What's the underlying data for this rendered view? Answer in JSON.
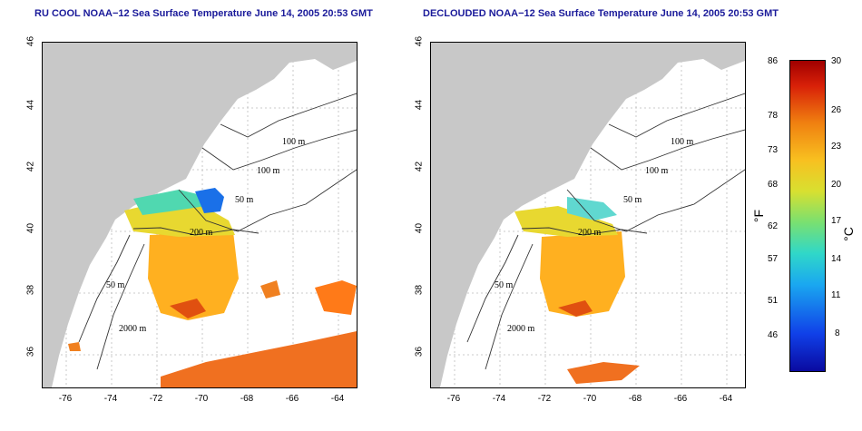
{
  "left_map": {
    "title": "RU COOL NOAA−12 Sea Surface Temperature June 14, 2005 20:53 GMT",
    "contour_labels": [
      "100 m",
      "100 m",
      "50 m",
      "200 m",
      "50 m",
      "2000 m"
    ]
  },
  "right_map": {
    "title": "DECLOUDED NOAA−12 Sea Surface Temperature June 14, 2005 20:53 GMT",
    "contour_labels": [
      "100 m",
      "100 m",
      "50 m",
      "200 m",
      "50 m",
      "2000 m"
    ]
  },
  "axes": {
    "y_ticks": [
      "46",
      "44",
      "42",
      "40",
      "38",
      "36"
    ],
    "x_ticks": [
      "-76",
      "-74",
      "-72",
      "-70",
      "-68",
      "-66",
      "-64"
    ]
  },
  "colorbar": {
    "fahrenheit_label": "°F",
    "celsius_label": "°C",
    "fahrenheit_ticks": [
      "86",
      "78",
      "73",
      "68",
      "62",
      "57",
      "51",
      "46"
    ],
    "celsius_ticks": [
      "30",
      "26",
      "23",
      "20",
      "17",
      "14",
      "11",
      "8"
    ]
  },
  "colors": {
    "land": "#c8c8c8",
    "contour": "#333333",
    "title": "#1a1a9a"
  }
}
